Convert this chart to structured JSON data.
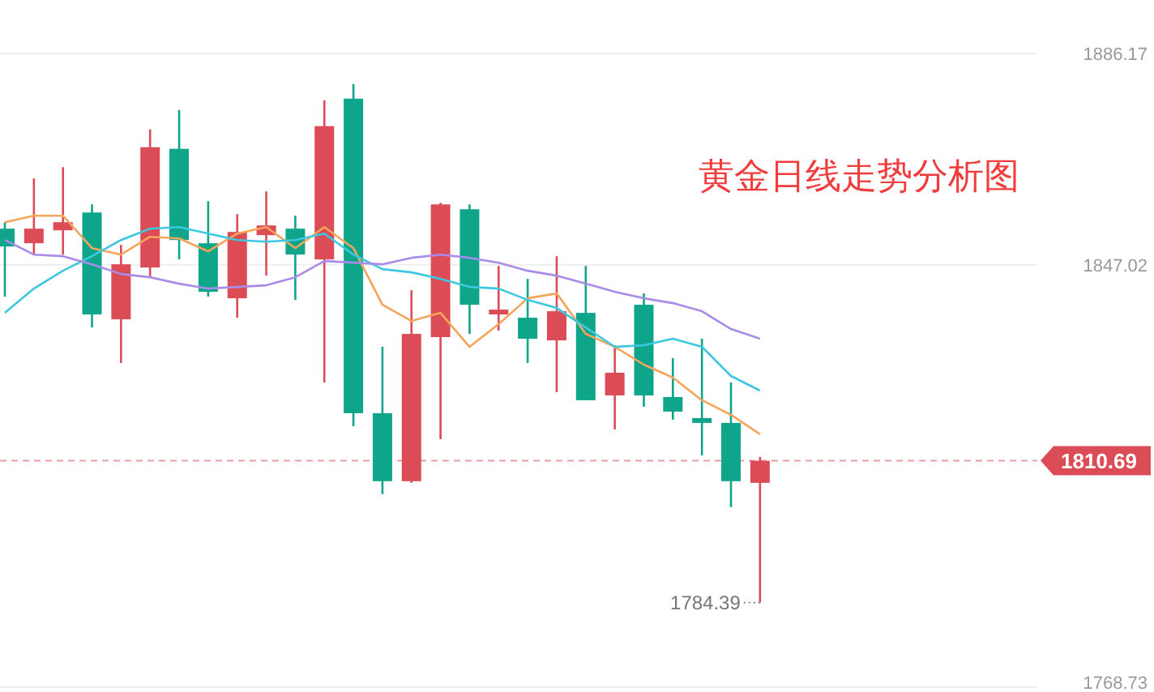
{
  "chart_data": {
    "type": "candlestick",
    "title": "黄金日线走势分析图",
    "categories": [
      null,
      null,
      null,
      null,
      null,
      null,
      null,
      null,
      null,
      null,
      null,
      null,
      null,
      null,
      null,
      null,
      null,
      null,
      null,
      null,
      null,
      null,
      null,
      null,
      null,
      null,
      null
    ],
    "ylim": [
      1768.73,
      1886.17
    ],
    "yticks": [
      1886.17,
      1847.02,
      1768.73
    ],
    "tick_labels": "y",
    "grid": "y",
    "ohlc": [
      [
        1853.7,
        1854.9,
        1841.1,
        1850.4
      ],
      [
        1851.0,
        1863.0,
        1848.9,
        1853.7
      ],
      [
        1853.4,
        1865.1,
        1848.9,
        1854.9
      ],
      [
        1856.7,
        1858.2,
        1835.4,
        1837.8
      ],
      [
        1836.9,
        1850.7,
        1828.8,
        1847.1
      ],
      [
        1846.5,
        1872.1,
        1844.7,
        1868.8
      ],
      [
        1868.5,
        1875.7,
        1848.0,
        1851.6
      ],
      [
        1851.0,
        1858.8,
        1841.1,
        1842.0
      ],
      [
        1840.8,
        1856.4,
        1837.2,
        1853.1
      ],
      [
        1852.5,
        1860.6,
        1845.0,
        1854.3
      ],
      [
        1853.7,
        1856.1,
        1840.5,
        1848.9
      ],
      [
        1848.0,
        1877.5,
        1825.2,
        1872.7
      ],
      [
        1877.8,
        1880.5,
        1817.1,
        1819.5
      ],
      [
        1819.5,
        1831.8,
        1804.5,
        1806.9
      ],
      [
        1806.9,
        1842.3,
        1806.6,
        1834.2
      ],
      [
        1833.6,
        1858.5,
        1814.7,
        1858.2
      ],
      [
        1857.3,
        1858.2,
        1834.2,
        1839.6
      ],
      [
        1837.8,
        1846.8,
        1834.8,
        1838.7
      ],
      [
        1837.2,
        1844.4,
        1828.8,
        1833.3
      ],
      [
        1833.0,
        1848.6,
        1823.4,
        1838.4
      ],
      [
        1838.1,
        1846.8,
        1821.9,
        1821.9
      ],
      [
        1822.8,
        1832.1,
        1816.5,
        1827.0
      ],
      [
        1839.6,
        1841.7,
        1820.7,
        1822.8
      ],
      [
        1822.5,
        1829.7,
        1818.3,
        1819.8
      ],
      [
        1818.6,
        1833.3,
        1811.7,
        1817.7
      ],
      [
        1817.7,
        1825.2,
        1802.1,
        1806.9
      ],
      [
        1806.6,
        1811.4,
        1784.39,
        1810.69
      ]
    ],
    "colors": [
      "#0ea58a",
      "#dc4c57",
      "#dc4c57",
      "#0ea58a",
      "#dc4c57",
      "#dc4c57",
      "#0ea58a",
      "#0ea58a",
      "#dc4c57",
      "#dc4c57",
      "#0ea58a",
      "#dc4c57",
      "#0ea58a",
      "#0ea58a",
      "#dc4c57",
      "#dc4c57",
      "#0ea58a",
      "#dc4c57",
      "#0ea58a",
      "#dc4c57",
      "#0ea58a",
      "#dc4c57",
      "#0ea58a",
      "#0ea58a",
      "#0ea58a",
      "#0ea58a",
      "#dc4c57"
    ],
    "series": [
      {
        "type": "line",
        "color": "#f5a55a",
        "values": [
          1854.9,
          1856.1,
          1856.1,
          1850.1,
          1848.9,
          1852.2,
          1851.9,
          1849.5,
          1852.8,
          1854.0,
          1850.1,
          1854.0,
          1850.1,
          1839.6,
          1836.6,
          1838.1,
          1831.8,
          1836.0,
          1840.8,
          1841.7,
          1834.2,
          1831.8,
          1828.5,
          1826.1,
          1821.9,
          1819.2,
          1815.6
        ]
      },
      {
        "type": "line",
        "color": "#3cc8e0",
        "values": [
          1838.1,
          1842.6,
          1845.9,
          1848.6,
          1851.6,
          1853.7,
          1854.0,
          1852.8,
          1851.6,
          1851.3,
          1851.6,
          1852.8,
          1848.9,
          1846.2,
          1845.6,
          1844.4,
          1842.9,
          1842.6,
          1840.5,
          1839.0,
          1835.4,
          1831.8,
          1832.1,
          1833.3,
          1831.8,
          1826.4,
          1823.7
        ]
      },
      {
        "type": "line",
        "color": "#a98be8",
        "values": [
          1851.6,
          1848.9,
          1848.6,
          1847.1,
          1845.3,
          1844.7,
          1843.5,
          1842.6,
          1842.9,
          1843.2,
          1844.7,
          1847.7,
          1847.4,
          1847.1,
          1848.3,
          1848.9,
          1848.3,
          1847.4,
          1845.9,
          1845.0,
          1843.5,
          1842.0,
          1840.8,
          1839.9,
          1838.4,
          1835.1,
          1833.3
        ]
      }
    ],
    "ref_lines": [
      {
        "axis": "y",
        "value": 1810.69,
        "label": "1810.69",
        "color": "#dc4c57",
        "line_style": "dashed"
      }
    ],
    "annotations": [
      "1784.39"
    ]
  }
}
